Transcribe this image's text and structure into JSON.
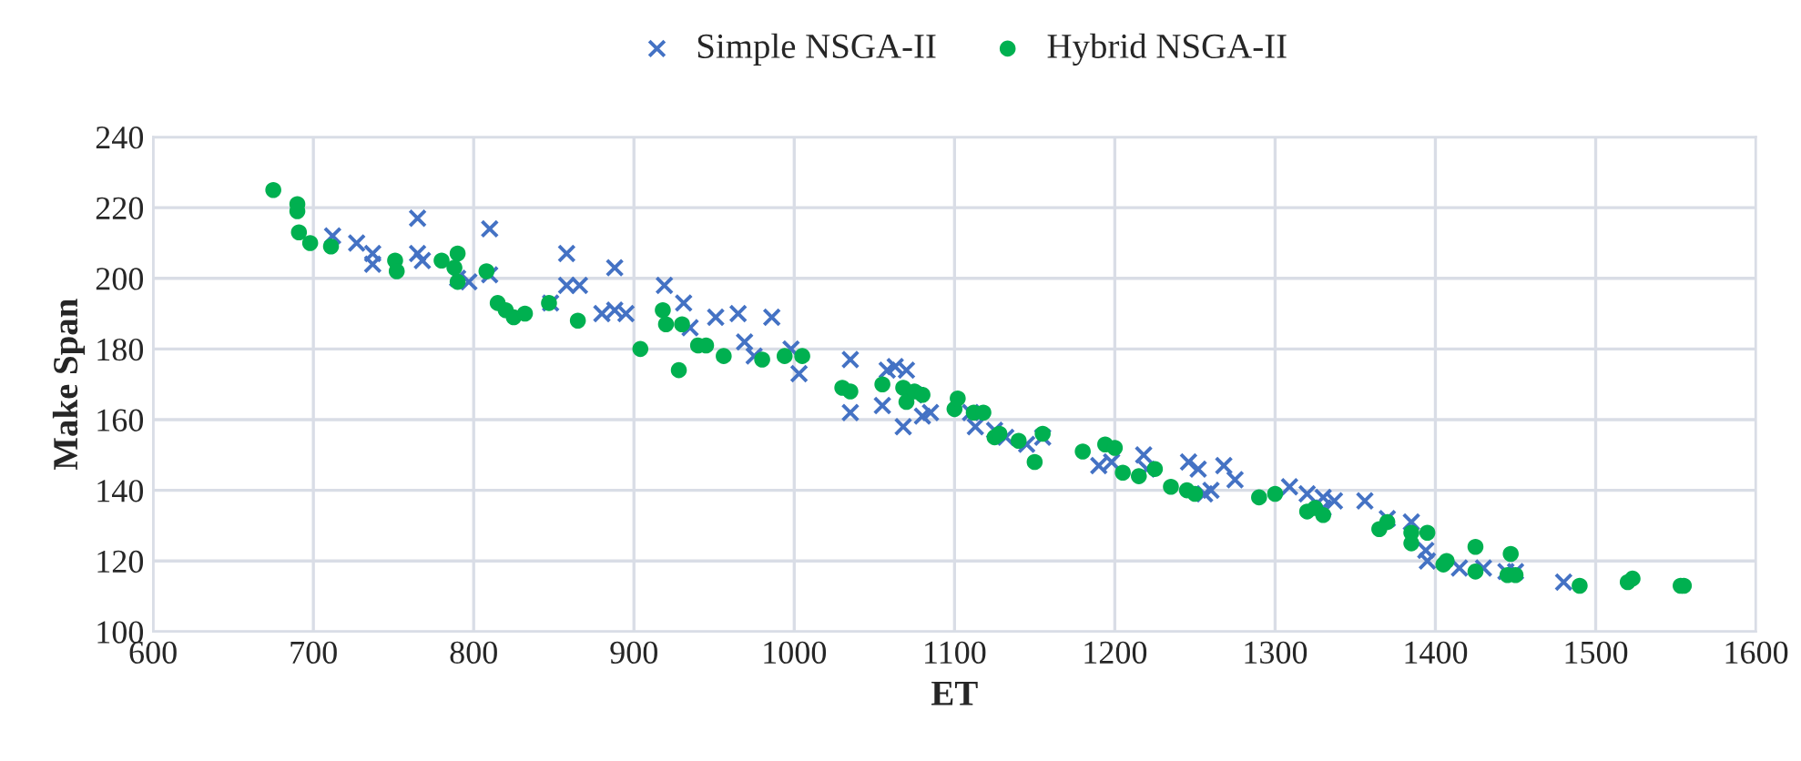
{
  "chart_data": {
    "type": "scatter",
    "xlabel": "ET",
    "ylabel": "Make Span",
    "xlim": [
      600,
      1600
    ],
    "xticks": [
      600,
      700,
      800,
      900,
      1000,
      1100,
      1200,
      1300,
      1400,
      1500,
      1600
    ],
    "ylim": [
      100,
      240
    ],
    "yticks": [
      100,
      120,
      140,
      160,
      180,
      200,
      220,
      240
    ],
    "grid": true,
    "legend": "top",
    "series": [
      {
        "name": "Simple NSGA-II",
        "color": "#4472c4",
        "marker": "cross",
        "x": [
          712,
          727,
          737,
          737,
          765,
          765,
          768,
          790,
          797,
          810,
          810,
          848,
          858,
          858,
          866,
          880,
          888,
          888,
          895,
          919,
          931,
          935,
          951,
          965,
          969,
          975,
          986,
          998,
          1003,
          1035,
          1035,
          1055,
          1058,
          1063,
          1068,
          1070,
          1075,
          1080,
          1085,
          1110,
          1113,
          1125,
          1132,
          1145,
          1155,
          1190,
          1198,
          1218,
          1220,
          1246,
          1252,
          1256,
          1260,
          1268,
          1275,
          1309,
          1320,
          1330,
          1330,
          1337,
          1356,
          1370,
          1385,
          1394,
          1395,
          1415,
          1430,
          1444,
          1450,
          1480
        ],
        "values": [
          212,
          210,
          207,
          204,
          217,
          207,
          205,
          200,
          199,
          214,
          201,
          193,
          207,
          198,
          198,
          190,
          203,
          191,
          190,
          198,
          193,
          186,
          189,
          190,
          182,
          178,
          189,
          180,
          173,
          177,
          162,
          164,
          174,
          175,
          158,
          174,
          167,
          161,
          162,
          162,
          158,
          157,
          155,
          153,
          155,
          147,
          148,
          150,
          146,
          148,
          146,
          139,
          140,
          147,
          143,
          141,
          139,
          135,
          138,
          137,
          137,
          132,
          131,
          123,
          120,
          118,
          118,
          117,
          117,
          114
        ]
      },
      {
        "name": "Hybrid NSGA-II",
        "color": "#00b050",
        "marker": "circle",
        "x": [
          675,
          690,
          690,
          691,
          698,
          711,
          751,
          752,
          780,
          788,
          790,
          790,
          808,
          815,
          820,
          825,
          832,
          847,
          865,
          904,
          918,
          920,
          928,
          930,
          940,
          945,
          956,
          980,
          994,
          1005,
          1030,
          1035,
          1055,
          1068,
          1070,
          1075,
          1080,
          1100,
          1102,
          1112,
          1118,
          1125,
          1128,
          1140,
          1150,
          1155,
          1180,
          1194,
          1200,
          1205,
          1215,
          1225,
          1235,
          1245,
          1250,
          1290,
          1300,
          1320,
          1325,
          1330,
          1365,
          1370,
          1385,
          1385,
          1395,
          1405,
          1407,
          1425,
          1425,
          1445,
          1447,
          1450,
          1490,
          1520,
          1523,
          1553,
          1555
        ],
        "values": [
          225,
          221,
          219,
          213,
          210,
          209,
          205,
          202,
          205,
          203,
          199,
          207,
          202,
          193,
          191,
          189,
          190,
          193,
          188,
          180,
          191,
          187,
          174,
          187,
          181,
          181,
          178,
          177,
          178,
          178,
          169,
          168,
          170,
          169,
          165,
          168,
          167,
          163,
          166,
          162,
          162,
          155,
          156,
          154,
          148,
          156,
          151,
          153,
          152,
          145,
          144,
          146,
          141,
          140,
          139,
          138,
          139,
          134,
          135,
          133,
          129,
          131,
          128,
          125,
          128,
          119,
          120,
          124,
          117,
          116,
          122,
          116,
          113,
          114,
          115,
          113,
          113
        ]
      }
    ]
  }
}
